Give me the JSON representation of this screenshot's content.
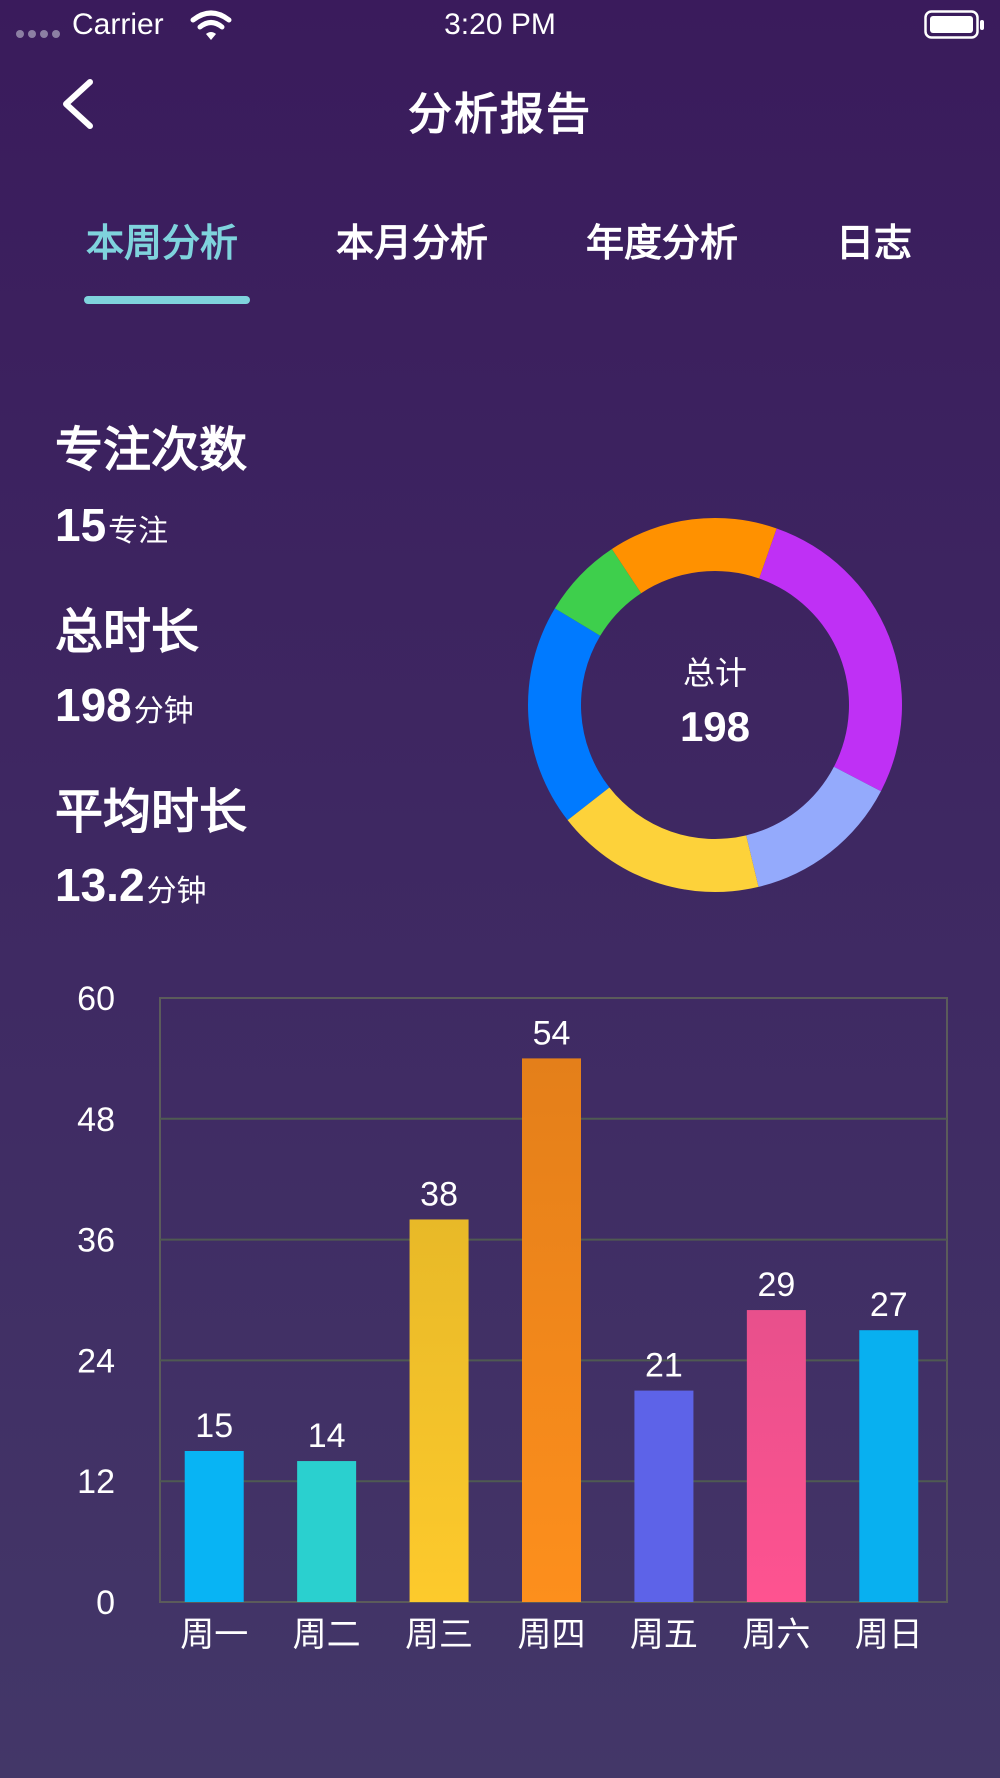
{
  "status_bar": {
    "carrier": "Carrier",
    "time": "3:20 PM"
  },
  "nav": {
    "title": "分析报告",
    "back_icon": "chevron-left-icon"
  },
  "tabs": [
    {
      "label": "本周分析",
      "active": true
    },
    {
      "label": "本月分析",
      "active": false
    },
    {
      "label": "年度分析",
      "active": false
    },
    {
      "label": "日志",
      "active": false
    }
  ],
  "stats": {
    "focus_count": {
      "heading": "专注次数",
      "value": "15",
      "unit": "专注"
    },
    "total_duration": {
      "heading": "总时长",
      "value": "198",
      "unit": "分钟"
    },
    "average_duration": {
      "heading": "平均时长",
      "value": "13.2",
      "unit": "分钟"
    }
  },
  "donut": {
    "center_label": "总计",
    "center_value": "198",
    "segments": [
      {
        "color": "#007aff",
        "value": 38
      },
      {
        "color": "#3ecf4c",
        "value": 14
      },
      {
        "color": "#ff9100",
        "value": 29
      },
      {
        "color": "#bf30f5",
        "value": 54
      },
      {
        "color": "#94aafc",
        "value": 27
      },
      {
        "color": "#fdd23a",
        "value": 36
      }
    ]
  },
  "chart_data": {
    "type": "bar",
    "categories": [
      "周一",
      "周二",
      "周三",
      "周四",
      "周五",
      "周六",
      "周日"
    ],
    "values": [
      15,
      14,
      38,
      54,
      21,
      29,
      27
    ],
    "colors": [
      [
        "#08b4f4",
        "#08b4f4"
      ],
      [
        "#2ad0cf",
        "#2ad0cf"
      ],
      [
        "#e8b928",
        "#fdca2c"
      ],
      [
        "#e47f1a",
        "#fd8f1c"
      ],
      [
        "#5d63e8",
        "#5d63e8"
      ],
      [
        "#e8508c",
        "#fe5390"
      ],
      [
        "#08b0f0",
        "#08b0f0"
      ]
    ],
    "yticks": [
      0,
      12,
      24,
      36,
      48,
      60
    ],
    "ylim": [
      0,
      60
    ],
    "grid": true,
    "show_value_labels": true
  }
}
